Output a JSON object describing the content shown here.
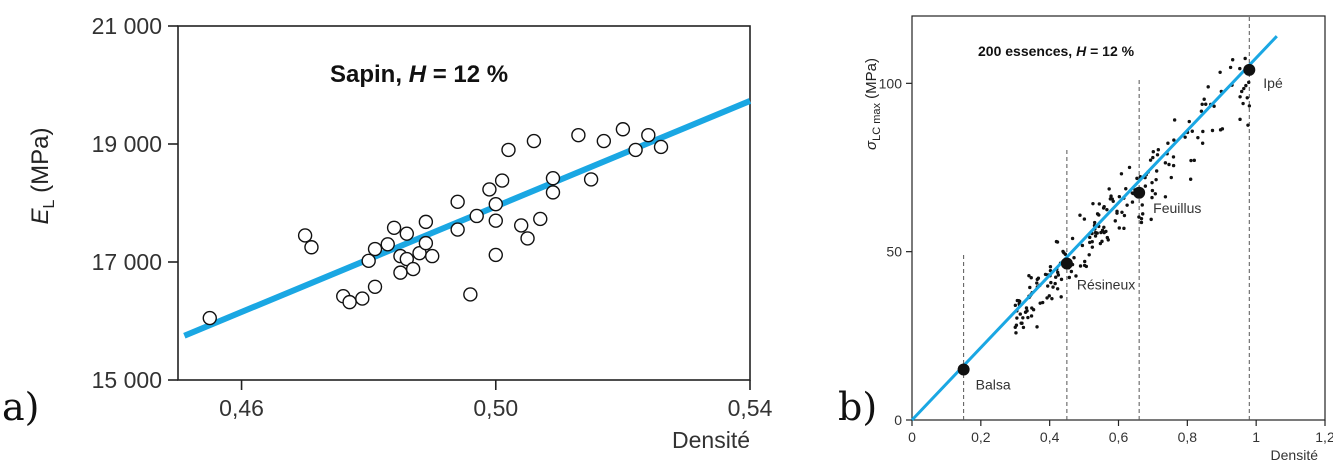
{
  "colors": {
    "fit_line": "#1aa7e3",
    "point": "#111111",
    "axis": "#222222",
    "dashed": "#555555"
  },
  "chart_data": [
    {
      "type": "scatter",
      "panel_label": "a)",
      "annotation": "Sapin, H = 12 %",
      "annotation_parts": {
        "prefix": "Sapin, ",
        "var": "H",
        "suffix": " = 12 %"
      },
      "xlabel": "Densité",
      "ylabel": {
        "symbol": "E",
        "sub": "L",
        "unit": " (MPa)"
      },
      "xlim": [
        0.45,
        0.54
      ],
      "ylim": [
        15000,
        21000
      ],
      "x_ticks": [
        0.46,
        0.5,
        0.54
      ],
      "x_tick_labels": [
        "0,46",
        "0,50",
        "0,54"
      ],
      "y_ticks": [
        15000,
        17000,
        19000,
        21000
      ],
      "y_tick_labels": [
        "15 000",
        "17 000",
        "19 000",
        "21 000"
      ],
      "marker": "open-circle",
      "fit_line": {
        "x": [
          0.451,
          0.54
        ],
        "y": [
          15750,
          19730
        ]
      },
      "points": [
        [
          0.455,
          16050
        ],
        [
          0.47,
          17450
        ],
        [
          0.471,
          17250
        ],
        [
          0.476,
          16420
        ],
        [
          0.477,
          16320
        ],
        [
          0.479,
          16380
        ],
        [
          0.48,
          17020
        ],
        [
          0.481,
          17220
        ],
        [
          0.481,
          16580
        ],
        [
          0.483,
          17300
        ],
        [
          0.484,
          17580
        ],
        [
          0.485,
          16820
        ],
        [
          0.485,
          17100
        ],
        [
          0.486,
          17480
        ],
        [
          0.486,
          17050
        ],
        [
          0.487,
          16880
        ],
        [
          0.488,
          17150
        ],
        [
          0.489,
          17680
        ],
        [
          0.489,
          17320
        ],
        [
          0.49,
          17100
        ],
        [
          0.494,
          18020
        ],
        [
          0.494,
          17550
        ],
        [
          0.496,
          16450
        ],
        [
          0.497,
          17780
        ],
        [
          0.499,
          18230
        ],
        [
          0.5,
          17980
        ],
        [
          0.5,
          17700
        ],
        [
          0.5,
          17120
        ],
        [
          0.501,
          18380
        ],
        [
          0.502,
          18900
        ],
        [
          0.504,
          17620
        ],
        [
          0.505,
          17400
        ],
        [
          0.506,
          19050
        ],
        [
          0.507,
          17730
        ],
        [
          0.509,
          18420
        ],
        [
          0.509,
          18180
        ],
        [
          0.513,
          19150
        ],
        [
          0.515,
          18400
        ],
        [
          0.517,
          19050
        ],
        [
          0.52,
          19250
        ],
        [
          0.522,
          18900
        ],
        [
          0.524,
          19150
        ],
        [
          0.526,
          18950
        ]
      ]
    },
    {
      "type": "scatter",
      "panel_label": "b)",
      "annotation": "200 essences, H = 12 %",
      "annotation_parts": {
        "prefix": "200 essences, ",
        "var": "H",
        "suffix": " = 12 %"
      },
      "xlabel": "Densité",
      "ylabel": {
        "symbol": "σ",
        "sub": "LC max",
        "unit": " (MPa)"
      },
      "xlim": [
        0,
        1.2
      ],
      "ylim": [
        0,
        120
      ],
      "x_ticks": [
        0,
        0.2,
        0.4,
        0.6,
        0.8,
        1.0,
        1.2
      ],
      "x_tick_labels": [
        "0",
        "0,2",
        "0,4",
        "0,6",
        "0,8",
        "1",
        "1,2"
      ],
      "y_ticks": [
        0,
        50,
        100
      ],
      "y_tick_labels": [
        "0",
        "50",
        "100"
      ],
      "marker": "small-dot",
      "fit_line": {
        "x": [
          0,
          1.06
        ],
        "y": [
          0,
          114
        ]
      },
      "dashed_x": [
        0.15,
        0.45,
        0.66,
        0.98
      ],
      "labeled_points": [
        {
          "name": "Balsa",
          "x": 0.15,
          "y": 15
        },
        {
          "name": "Résineux",
          "x": 0.45,
          "y": 46.5
        },
        {
          "name": "Feuillus",
          "x": 0.66,
          "y": 67.5
        },
        {
          "name": "Ipé",
          "x": 0.98,
          "y": 104
        }
      ],
      "cloud": {
        "count": 200,
        "x_range": [
          0.3,
          1.0
        ],
        "slope": 105,
        "spread_note": "points scattered around the fit line"
      }
    }
  ]
}
